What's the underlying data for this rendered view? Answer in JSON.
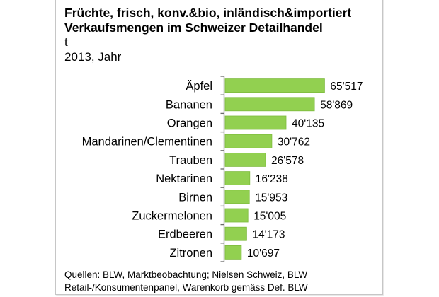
{
  "chart_data": {
    "type": "bar",
    "orientation": "horizontal",
    "title": "Früchte, frisch, konv.&bio, inländisch&importiert",
    "subtitle": "Verkaufsmengen im Schweizer Detailhandel",
    "unit": "t",
    "period": "2013, Jahr",
    "categories": [
      "Äpfel",
      "Bananen",
      "Orangen",
      "Mandarinen/Clementinen",
      "Trauben",
      "Nektarinen",
      "Birnen",
      "Zuckermelonen",
      "Erdbeeren",
      "Zitronen"
    ],
    "values": [
      65517,
      58869,
      40135,
      30762,
      26578,
      16238,
      15953,
      15005,
      14173,
      10697
    ],
    "value_labels": [
      "65'517",
      "58'869",
      "40'135",
      "30'762",
      "26'578",
      "16'238",
      "15'953",
      "15'005",
      "14'173",
      "10'697"
    ],
    "xlim": [
      0,
      70000
    ],
    "xlabel": "",
    "ylabel": "",
    "grid": false,
    "legend": "none",
    "bar_color": "#92d050",
    "bar_edge_color": "#7dbb3c",
    "axis_color": "#6b6b6b"
  },
  "source": {
    "line1": "Quellen: BLW, Marktbeobachtung; Nielsen Schweiz, BLW",
    "line2": "Retail-/Konsumentenpanel, Warenkorb gemäss Def. BLW"
  }
}
